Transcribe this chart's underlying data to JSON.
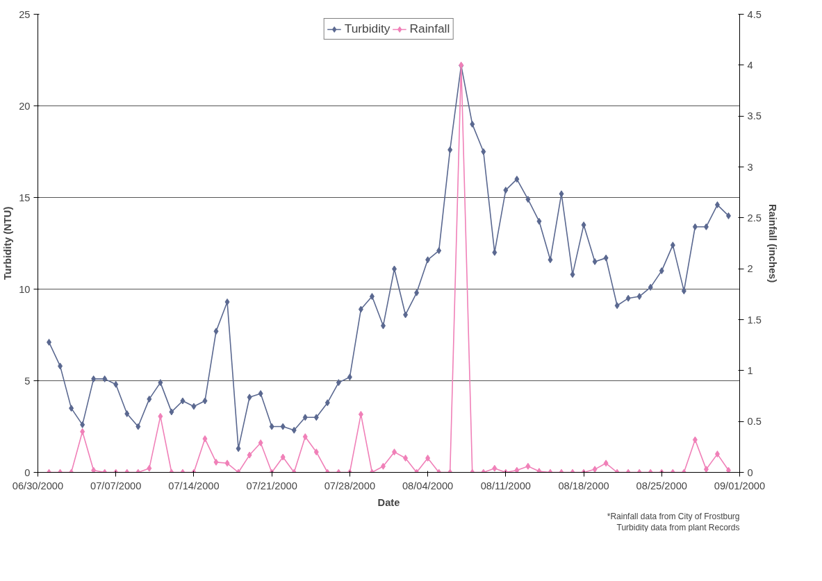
{
  "chart_data": {
    "type": "line",
    "xlabel": "Date",
    "ylabel": "Turbidity (NTU)",
    "y2label": "Rainfall (inches)",
    "x": [
      "2000-07-01",
      "2000-07-02",
      "2000-07-03",
      "2000-07-04",
      "2000-07-05",
      "2000-07-06",
      "2000-07-07",
      "2000-07-08",
      "2000-07-09",
      "2000-07-10",
      "2000-07-11",
      "2000-07-12",
      "2000-07-13",
      "2000-07-14",
      "2000-07-15",
      "2000-07-16",
      "2000-07-17",
      "2000-07-18",
      "2000-07-19",
      "2000-07-20",
      "2000-07-21",
      "2000-07-22",
      "2000-07-23",
      "2000-07-24",
      "2000-07-25",
      "2000-07-26",
      "2000-07-27",
      "2000-07-28",
      "2000-07-29",
      "2000-07-30",
      "2000-07-31",
      "2000-08-01",
      "2000-08-02",
      "2000-08-03",
      "2000-08-04",
      "2000-08-05",
      "2000-08-06",
      "2000-08-07",
      "2000-08-08",
      "2000-08-09",
      "2000-08-10",
      "2000-08-11",
      "2000-08-12",
      "2000-08-13",
      "2000-08-14",
      "2000-08-15",
      "2000-08-16",
      "2000-08-17",
      "2000-08-18",
      "2000-08-19",
      "2000-08-20",
      "2000-08-21",
      "2000-08-22",
      "2000-08-23",
      "2000-08-24",
      "2000-08-25",
      "2000-08-26",
      "2000-08-27",
      "2000-08-28",
      "2000-08-29",
      "2000-08-30",
      "2000-08-31"
    ],
    "series": [
      {
        "name": "Turbidity",
        "color": "#5a6890",
        "values": [
          7.1,
          5.8,
          3.5,
          2.6,
          5.1,
          5.1,
          4.8,
          3.2,
          2.5,
          4.0,
          4.9,
          3.3,
          3.9,
          3.6,
          3.9,
          7.7,
          9.3,
          1.3,
          4.1,
          4.3,
          2.5,
          2.5,
          2.3,
          3.0,
          3.0,
          3.8,
          4.9,
          5.2,
          8.9,
          9.6,
          8.0,
          11.1,
          8.6,
          9.8,
          11.6,
          12.1,
          17.6,
          22.2,
          19.0,
          17.5,
          12.0,
          15.4,
          16.0,
          14.9,
          13.7,
          11.6,
          15.2,
          10.8,
          13.5,
          11.5,
          11.7,
          9.1,
          9.5,
          9.6,
          10.1,
          11.0,
          12.4,
          9.9,
          13.4,
          13.4,
          14.6,
          14.0
        ]
      },
      {
        "name": "Rainfall",
        "color": "#f080b8",
        "axis": "y2",
        "values": [
          0,
          0,
          0,
          0.4,
          0.02,
          0,
          0,
          0,
          0,
          0.04,
          0.55,
          0,
          0,
          0,
          0.33,
          0.1,
          0.09,
          0,
          0.17,
          0.29,
          0,
          0.15,
          0,
          0.35,
          0.2,
          0,
          0,
          0,
          0.57,
          0,
          0.06,
          0.2,
          0.14,
          0,
          0.14,
          0,
          0,
          4.0,
          0,
          0,
          0.04,
          0,
          0.02,
          0.06,
          0.01,
          0,
          0,
          0,
          0,
          0.03,
          0.09,
          0,
          0,
          0,
          0,
          0,
          0,
          0,
          0.32,
          0.03,
          0.18,
          0.02
        ]
      }
    ],
    "xlim": [
      "2000-06-30",
      "2000-09-01"
    ],
    "xticks": [
      {
        "value": "2000-06-30",
        "label": "06/30/2000"
      },
      {
        "value": "2000-07-07",
        "label": "07/07/2000"
      },
      {
        "value": "2000-07-14",
        "label": "07/14/2000"
      },
      {
        "value": "2000-07-21",
        "label": "07/21/2000"
      },
      {
        "value": "2000-07-28",
        "label": "07/28/2000"
      },
      {
        "value": "2000-08-04",
        "label": "08/04/2000"
      },
      {
        "value": "2000-08-11",
        "label": "08/11/2000"
      },
      {
        "value": "2000-08-18",
        "label": "08/18/2000"
      },
      {
        "value": "2000-08-25",
        "label": "08/25/2000"
      },
      {
        "value": "2000-09-01",
        "label": "09/01/2000"
      }
    ],
    "ylim": [
      0,
      25
    ],
    "yticks": [
      0,
      5,
      10,
      15,
      20,
      25
    ],
    "y2lim": [
      0,
      4.5
    ],
    "y2ticks": [
      0,
      0.5,
      1,
      1.5,
      2,
      2.5,
      3,
      3.5,
      4,
      4.5
    ],
    "grid": "y",
    "legend": "top",
    "marker": "diamond",
    "line_style": "solid",
    "annotations": [
      "*Rainfall data from City of Frostburg",
      "Turbidity data from plant Records"
    ]
  }
}
